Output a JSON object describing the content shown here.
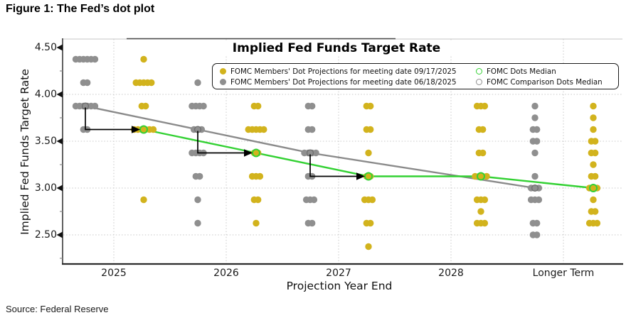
{
  "header": {
    "figure_title": "Figure 1: The Fed’s dot plot"
  },
  "source": "Source: Federal Reserve",
  "chart_data": {
    "type": "scatter",
    "subtype": "fomc-dot-plot",
    "title": "Implied Fed Funds Target Rate",
    "xlabel": "Projection Year End",
    "ylabel": "Implied Fed Funds Target Rate",
    "categories": [
      "2025",
      "2026",
      "2027",
      "2028",
      "Longer Term"
    ],
    "ytick_labels": [
      "4.50",
      "4.00",
      "3.50",
      "3.00",
      "2.50"
    ],
    "yticks": [
      4.5,
      4.0,
      3.5,
      3.0,
      2.5
    ],
    "ylim": [
      2.2,
      4.6
    ],
    "grid": true,
    "legend_position": "top-inside",
    "colors": {
      "current_dots": "#d2b31d",
      "comparison_dots": "#8f8f8f",
      "median_line": "#33d133",
      "comparison_median_line": "#8a8a8a",
      "arrow": "#000000",
      "gridline": "#c8c8c8"
    },
    "legend": {
      "items": [
        {
          "label": "FOMC Members' Dot Projections for meeting date 09/17/2025",
          "marker": "filled-dot",
          "color": "#d2b31d"
        },
        {
          "label": "FOMC Members' Dot Projections for meeting date 06/18/2025",
          "marker": "filled-dot",
          "color": "#8f8f8f"
        },
        {
          "label": "FOMC Dots Median",
          "marker": "open-circle",
          "color": "#33d133"
        },
        {
          "label": "FOMC Comparison Dots Median",
          "marker": "open-circle",
          "color": "#8f8f8f"
        }
      ]
    },
    "series": [
      {
        "name": "FOMC Members' Dot Projections for meeting date 09/17/2025",
        "color_key": "current_dots",
        "by_category": {
          "2025": [
            {
              "rate": 4.375,
              "count": 1
            },
            {
              "rate": 4.125,
              "count": 5
            },
            {
              "rate": 3.875,
              "count": 2
            },
            {
              "rate": 3.625,
              "count": 6
            },
            {
              "rate": 2.875,
              "count": 1
            }
          ],
          "2026": [
            {
              "rate": 3.875,
              "count": 2
            },
            {
              "rate": 3.625,
              "count": 5
            },
            {
              "rate": 3.375,
              "count": 2
            },
            {
              "rate": 3.125,
              "count": 3
            },
            {
              "rate": 2.875,
              "count": 2
            },
            {
              "rate": 2.625,
              "count": 1
            }
          ],
          "2027": [
            {
              "rate": 3.875,
              "count": 2
            },
            {
              "rate": 3.625,
              "count": 2
            },
            {
              "rate": 3.375,
              "count": 1
            },
            {
              "rate": 3.125,
              "count": 2
            },
            {
              "rate": 2.875,
              "count": 3
            },
            {
              "rate": 2.625,
              "count": 2
            },
            {
              "rate": 2.375,
              "count": 1
            }
          ],
          "2028": [
            {
              "rate": 3.875,
              "count": 3
            },
            {
              "rate": 3.625,
              "count": 2
            },
            {
              "rate": 3.375,
              "count": 2
            },
            {
              "rate": 3.125,
              "count": 4
            },
            {
              "rate": 2.875,
              "count": 3
            },
            {
              "rate": 2.75,
              "count": 1
            },
            {
              "rate": 2.625,
              "count": 3
            }
          ],
          "Longer Term": [
            {
              "rate": 3.875,
              "count": 1
            },
            {
              "rate": 3.75,
              "count": 1
            },
            {
              "rate": 3.625,
              "count": 1
            },
            {
              "rate": 3.5,
              "count": 2
            },
            {
              "rate": 3.375,
              "count": 2
            },
            {
              "rate": 3.25,
              "count": 1
            },
            {
              "rate": 3.125,
              "count": 2
            },
            {
              "rate": 3.0,
              "count": 3
            },
            {
              "rate": 2.875,
              "count": 1
            },
            {
              "rate": 2.75,
              "count": 2
            },
            {
              "rate": 2.625,
              "count": 3
            }
          ]
        }
      },
      {
        "name": "FOMC Members' Dot Projections for meeting date 06/18/2025",
        "color_key": "comparison_dots",
        "by_category": {
          "2025": [
            {
              "rate": 4.375,
              "count": 6
            },
            {
              "rate": 4.125,
              "count": 2
            },
            {
              "rate": 3.875,
              "count": 6
            },
            {
              "rate": 3.625,
              "count": 2
            }
          ],
          "2026": [
            {
              "rate": 4.125,
              "count": 1
            },
            {
              "rate": 3.875,
              "count": 4
            },
            {
              "rate": 3.625,
              "count": 3
            },
            {
              "rate": 3.375,
              "count": 4
            },
            {
              "rate": 3.125,
              "count": 2
            },
            {
              "rate": 2.875,
              "count": 1
            },
            {
              "rate": 2.625,
              "count": 1
            }
          ],
          "2027": [
            {
              "rate": 3.875,
              "count": 2
            },
            {
              "rate": 3.625,
              "count": 2
            },
            {
              "rate": 3.375,
              "count": 4
            },
            {
              "rate": 3.125,
              "count": 2
            },
            {
              "rate": 2.875,
              "count": 3
            },
            {
              "rate": 2.625,
              "count": 2
            }
          ],
          "2028": [],
          "Longer Term": [
            {
              "rate": 3.875,
              "count": 1
            },
            {
              "rate": 3.75,
              "count": 1
            },
            {
              "rate": 3.625,
              "count": 2
            },
            {
              "rate": 3.5,
              "count": 2
            },
            {
              "rate": 3.375,
              "count": 1
            },
            {
              "rate": 3.125,
              "count": 1
            },
            {
              "rate": 3.0,
              "count": 3
            },
            {
              "rate": 2.875,
              "count": 3
            },
            {
              "rate": 2.625,
              "count": 2
            },
            {
              "rate": 2.5,
              "count": 2
            }
          ]
        }
      }
    ],
    "medians": {
      "current": {
        "2025": 3.625,
        "2026": 3.375,
        "2027": 3.125,
        "2028": 3.125,
        "Longer Term": 3.0
      },
      "comparison": {
        "2025": 3.875,
        "2026": 3.625,
        "2027": 3.375,
        "Longer Term": 3.0
      }
    },
    "arrows": [
      {
        "category": "2025",
        "from_rate": 3.875,
        "to_rate": 3.625
      },
      {
        "category": "2026",
        "from_rate": 3.625,
        "to_rate": 3.375
      },
      {
        "category": "2027",
        "from_rate": 3.375,
        "to_rate": 3.125
      }
    ]
  }
}
